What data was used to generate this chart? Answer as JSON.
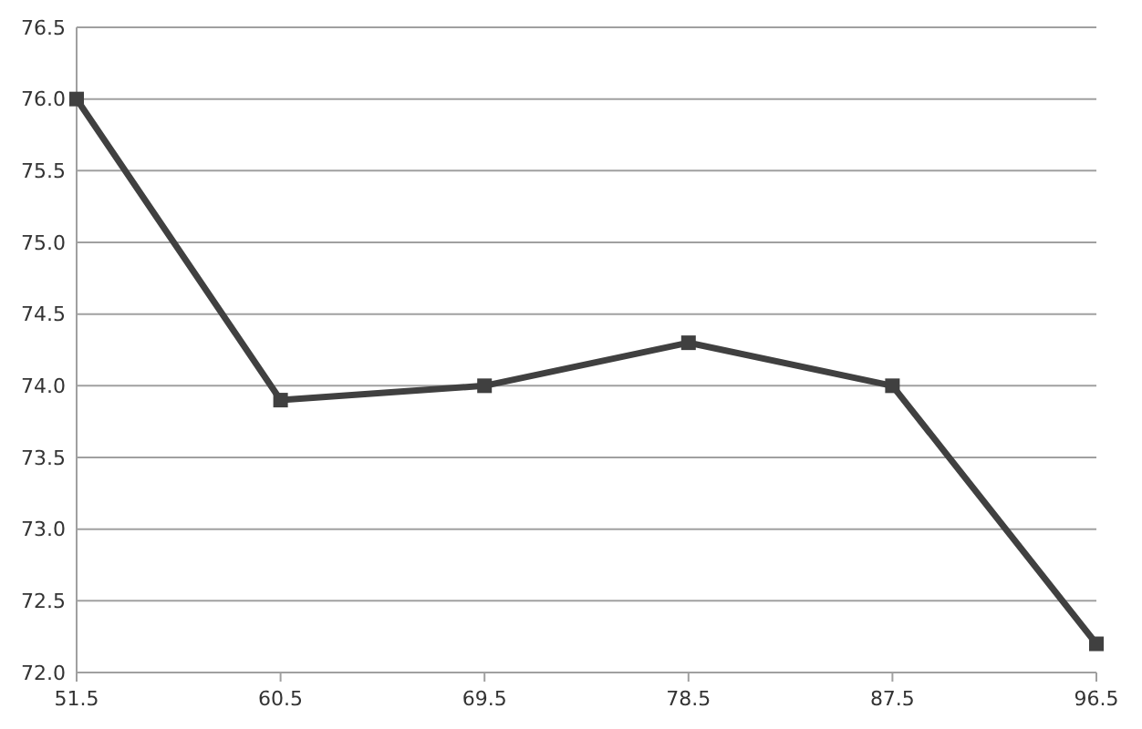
{
  "chart_data": {
    "type": "line",
    "x": [
      51.5,
      60.5,
      69.5,
      78.5,
      87.5,
      96.5
    ],
    "series": [
      {
        "color": "#404040",
        "values": [
          76.0,
          73.9,
          74.0,
          74.3,
          74.0,
          72.2
        ]
      }
    ],
    "xlim": [
      51.5,
      96.5
    ],
    "xticks": [
      51.5,
      60.5,
      69.5,
      78.5,
      87.5,
      96.5
    ],
    "ylim": [
      72.0,
      76.5
    ],
    "yticks": [
      {
        "value": 72,
        "label": "72.0"
      },
      {
        "value": 72.5,
        "label": "72.5"
      },
      {
        "value": 73,
        "label": "73.0"
      },
      {
        "value": 73.5,
        "label": "73.5"
      },
      {
        "value": 74,
        "label": "74.0"
      },
      {
        "value": 74.5,
        "label": "74.5"
      },
      {
        "value": 75,
        "label": "75.0"
      },
      {
        "value": 75.5,
        "label": "75.5"
      },
      {
        "value": 76,
        "label": "76.0"
      },
      {
        "value": 76.5,
        "label": "76.5"
      }
    ],
    "grid": "y",
    "marker": "square",
    "line_style": "solid"
  }
}
